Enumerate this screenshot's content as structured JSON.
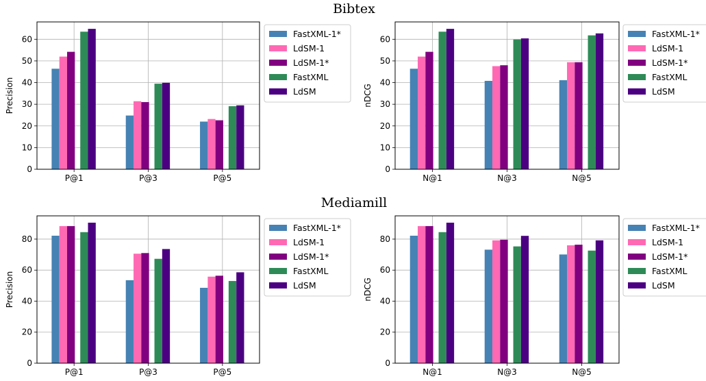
{
  "sections": [
    {
      "title": "Bibtex"
    },
    {
      "title": "Mediamill"
    }
  ],
  "colors": {
    "FastXML-1*": "#4682b4",
    "LdSM-1": "#ff69b4",
    "LdSM-1*": "#800080",
    "FastXML": "#2e8b57",
    "LdSM": "#4b0082"
  },
  "chart_data": [
    {
      "type": "bar",
      "section": "Bibtex",
      "ylabel": "Precision",
      "xlabel": "",
      "categories": [
        "P@1",
        "P@3",
        "P@5"
      ],
      "ylim": [
        0,
        68
      ],
      "yticks": [
        0,
        10,
        20,
        30,
        40,
        50,
        60
      ],
      "grid": true,
      "legend": "right-outside-top",
      "series": [
        {
          "name": "FastXML-1*",
          "values": [
            46.4,
            24.8,
            22.0
          ]
        },
        {
          "name": "LdSM-1",
          "values": [
            52.0,
            31.4,
            23.2
          ]
        },
        {
          "name": "LdSM-1*",
          "values": [
            54.2,
            31.0,
            22.6
          ]
        },
        {
          "name": "FastXML",
          "values": [
            63.5,
            39.5,
            29.1
          ]
        },
        {
          "name": "LdSM",
          "values": [
            64.8,
            39.9,
            29.5
          ]
        }
      ]
    },
    {
      "type": "bar",
      "section": "Bibtex",
      "ylabel": "nDCG",
      "xlabel": "",
      "categories": [
        "N@1",
        "N@3",
        "N@5"
      ],
      "ylim": [
        0,
        68
      ],
      "yticks": [
        0,
        10,
        20,
        30,
        40,
        50,
        60
      ],
      "grid": true,
      "legend": "right-outside-top",
      "series": [
        {
          "name": "FastXML-1*",
          "values": [
            46.4,
            40.8,
            41.1
          ]
        },
        {
          "name": "LdSM-1",
          "values": [
            52.0,
            47.6,
            49.4
          ]
        },
        {
          "name": "LdSM-1*",
          "values": [
            54.2,
            48.0,
            49.4
          ]
        },
        {
          "name": "FastXML",
          "values": [
            63.5,
            59.9,
            61.8
          ]
        },
        {
          "name": "LdSM",
          "values": [
            64.8,
            60.4,
            62.7
          ]
        }
      ]
    },
    {
      "type": "bar",
      "section": "Mediamill",
      "ylabel": "Precision",
      "xlabel": "",
      "categories": [
        "P@1",
        "P@3",
        "P@5"
      ],
      "ylim": [
        0,
        95
      ],
      "yticks": [
        0,
        20,
        40,
        60,
        80
      ],
      "grid": true,
      "legend": "right-outside-top",
      "series": [
        {
          "name": "FastXML-1*",
          "values": [
            82.2,
            53.5,
            48.6
          ]
        },
        {
          "name": "LdSM-1",
          "values": [
            88.4,
            70.6,
            55.8
          ]
        },
        {
          "name": "LdSM-1*",
          "values": [
            88.4,
            71.0,
            56.4
          ]
        },
        {
          "name": "FastXML",
          "values": [
            84.5,
            67.3,
            53.0
          ]
        },
        {
          "name": "LdSM",
          "values": [
            90.6,
            73.6,
            58.6
          ]
        }
      ]
    },
    {
      "type": "bar",
      "section": "Mediamill",
      "ylabel": "nDCG",
      "xlabel": "",
      "categories": [
        "N@1",
        "N@3",
        "N@5"
      ],
      "ylim": [
        0,
        95
      ],
      "yticks": [
        0,
        20,
        40,
        60,
        80
      ],
      "grid": true,
      "legend": "right-outside-top",
      "series": [
        {
          "name": "FastXML-1*",
          "values": [
            82.2,
            73.2,
            70.1
          ]
        },
        {
          "name": "LdSM-1",
          "values": [
            88.4,
            79.2,
            76.0
          ]
        },
        {
          "name": "LdSM-1*",
          "values": [
            88.4,
            79.6,
            76.4
          ]
        },
        {
          "name": "FastXML",
          "values": [
            84.5,
            75.3,
            72.6
          ]
        },
        {
          "name": "LdSM",
          "values": [
            90.6,
            82.1,
            79.2
          ]
        }
      ]
    }
  ]
}
